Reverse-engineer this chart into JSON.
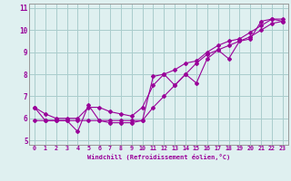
{
  "xlabel": "Windchill (Refroidissement éolien,°C)",
  "x_data": [
    0,
    1,
    2,
    3,
    4,
    5,
    6,
    7,
    8,
    9,
    10,
    11,
    12,
    13,
    14,
    15,
    16,
    17,
    18,
    19,
    20,
    21,
    22,
    23
  ],
  "y_main": [
    6.5,
    5.9,
    5.9,
    5.9,
    5.4,
    6.6,
    5.9,
    5.8,
    5.8,
    5.8,
    5.9,
    7.9,
    8.0,
    7.5,
    8.0,
    7.6,
    8.7,
    9.1,
    8.7,
    9.5,
    9.6,
    10.4,
    10.5,
    10.4
  ],
  "y_smooth_low": [
    5.9,
    5.9,
    5.9,
    5.9,
    5.9,
    5.9,
    5.9,
    5.9,
    5.9,
    5.9,
    5.9,
    6.5,
    7.0,
    7.5,
    8.0,
    8.5,
    8.9,
    9.1,
    9.3,
    9.5,
    9.7,
    10.0,
    10.3,
    10.4
  ],
  "y_smooth_high": [
    6.5,
    6.2,
    6.0,
    6.0,
    6.0,
    6.5,
    6.5,
    6.3,
    6.2,
    6.1,
    6.5,
    7.5,
    8.0,
    8.2,
    8.5,
    8.6,
    9.0,
    9.3,
    9.5,
    9.6,
    9.9,
    10.2,
    10.5,
    10.5
  ],
  "line_color": "#990099",
  "bg_color": "#dff0f0",
  "grid_color": "#aacccc",
  "ylim": [
    4.8,
    11.2
  ],
  "xlim": [
    -0.5,
    23.5
  ],
  "yticks": [
    5,
    6,
    7,
    8,
    9,
    10,
    11
  ],
  "xticks": [
    0,
    1,
    2,
    3,
    4,
    5,
    6,
    7,
    8,
    9,
    10,
    11,
    12,
    13,
    14,
    15,
    16,
    17,
    18,
    19,
    20,
    21,
    22,
    23
  ]
}
